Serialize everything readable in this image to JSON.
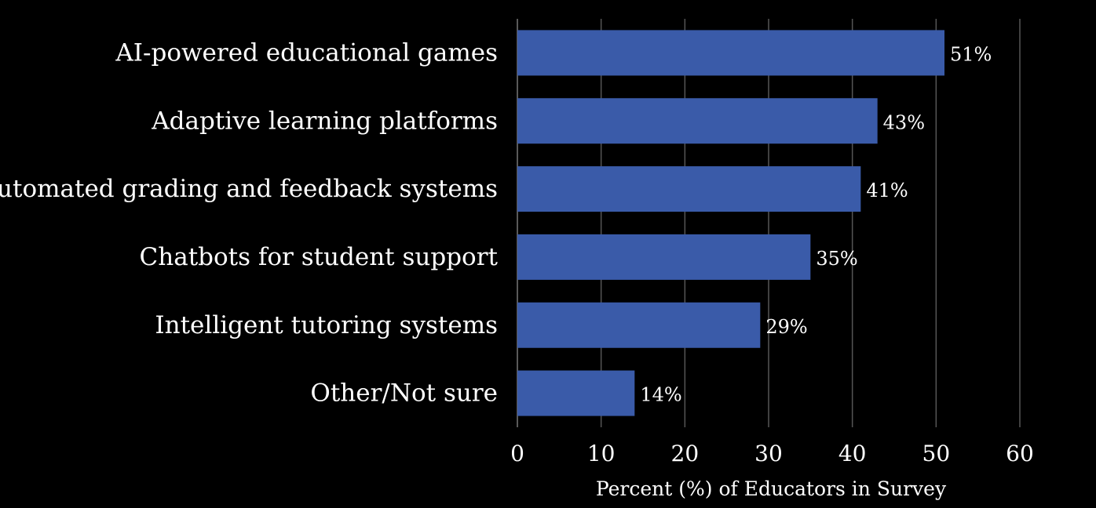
{
  "chart_data": {
    "type": "bar",
    "orientation": "horizontal",
    "categories": [
      "AI-powered educational games",
      "Adaptive learning platforms",
      "Automated grading and feedback systems",
      "Chatbots for student support",
      "Intelligent tutoring systems",
      "Other/Not sure"
    ],
    "values": [
      51,
      43,
      41,
      35,
      29,
      14
    ],
    "data_labels": [
      "51%",
      "43%",
      "41%",
      "35%",
      "29%",
      "14%"
    ],
    "xlabel": "Percent (%) of Educators in Survey",
    "ylabel": "",
    "xlim": [
      0,
      60
    ],
    "xticks": [
      0,
      10,
      20,
      30,
      40,
      50,
      60
    ],
    "xtick_labels": [
      "0",
      "10",
      "20",
      "30",
      "40",
      "50",
      "60"
    ],
    "grid": "vertical",
    "legend": "none",
    "bar_color": "#3a5ba9",
    "background_color": "#000000",
    "text_color": "#ffffff"
  }
}
